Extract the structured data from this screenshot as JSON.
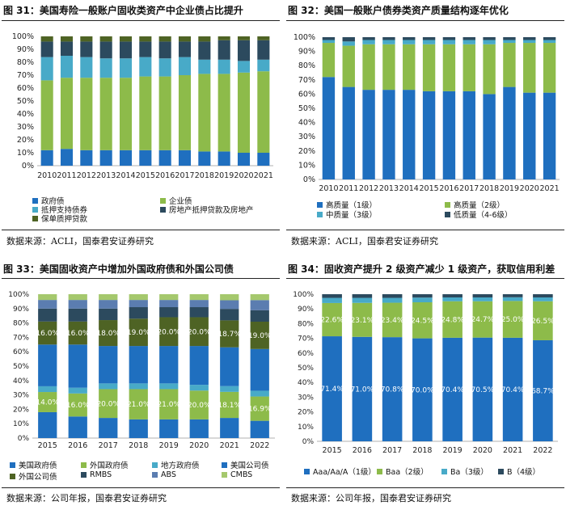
{
  "panels": [
    {
      "title": "图 31：美国寿险一般账户固收类资产中企业债占比提升",
      "source": "数据来源：ACLI，国泰君安证券研究",
      "chart_data": {
        "type": "bar",
        "stacked": true,
        "categories": [
          "2010",
          "2011",
          "2012",
          "2013",
          "2014",
          "2015",
          "2016",
          "2017",
          "2018",
          "2019",
          "2020",
          "2021"
        ],
        "ylim": [
          0,
          100
        ],
        "yticks": [
          "0%",
          "10%",
          "20%",
          "30%",
          "40%",
          "50%",
          "60%",
          "70%",
          "80%",
          "90%",
          "100%"
        ],
        "series": [
          {
            "name": "政府债",
            "color": "#1f6fbf",
            "values": [
              12,
              13,
              12,
              12,
              12,
              12,
              12,
              12,
              11,
              11,
              10,
              10
            ]
          },
          {
            "name": "企业债",
            "color": "#8dbb4a",
            "values": [
              54,
              55,
              56,
              56,
              56,
              57,
              57,
              58,
              60,
              60,
              62,
              63
            ]
          },
          {
            "name": "抵押支持债券",
            "color": "#48aac8",
            "values": [
              18,
              17,
              16,
              15,
              15,
              15,
              14,
              14,
              11,
              11,
              9,
              9
            ]
          },
          {
            "name": "房地产抵押贷款及房地产",
            "color": "#2c4a5e",
            "values": [
              12,
              11,
              12,
              13,
              13,
              12,
              13,
              12,
              14,
              15,
              16,
              15
            ]
          },
          {
            "name": "保单质押贷款",
            "color": "#4e6324",
            "values": [
              4,
              4,
              4,
              4,
              4,
              4,
              4,
              4,
              4,
              3,
              3,
              3
            ]
          }
        ]
      }
    },
    {
      "title": "图 32：美国一般账户债券类资产质量结构逐年优化",
      "source": "数据来源：ACLI，国泰君安证券研究",
      "chart_data": {
        "type": "bar",
        "stacked": true,
        "categories": [
          "2010",
          "2011",
          "2012",
          "2013",
          "2014",
          "2015",
          "2016",
          "2017",
          "2018",
          "2019",
          "2020",
          "2021"
        ],
        "ylim": [
          0,
          100
        ],
        "yticks": [
          "0%",
          "10%",
          "20%",
          "30%",
          "40%",
          "50%",
          "60%",
          "70%",
          "80%",
          "90%",
          "100%"
        ],
        "series": [
          {
            "name": "高质量（1级）",
            "color": "#1f6fbf",
            "values": [
              72,
              65,
              63,
              63,
              63,
              62,
              62,
              62,
              60,
              65,
              61,
              61
            ]
          },
          {
            "name": "高质量（2级）",
            "color": "#8dbb4a",
            "values": [
              24,
              29,
              32,
              32,
              32,
              33,
              33,
              33,
              35,
              31,
              35,
              35
            ]
          },
          {
            "name": "中质量（3级）",
            "color": "#48aac8",
            "values": [
              2,
              3,
              3,
              3,
              3,
              3,
              3,
              3,
              3,
              2,
              2,
              2
            ]
          },
          {
            "name": "低质量（4-6级）",
            "color": "#2c4a5e",
            "values": [
              2,
              3,
              2,
              2,
              2,
              2,
              2,
              2,
              2,
              2,
              2,
              2
            ]
          }
        ]
      }
    },
    {
      "title": "图 33：美国固收资产中增加外国政府债和外国公司债",
      "source": "数据来源：公司年报，国泰君安证券研究",
      "chart_data": {
        "type": "bar",
        "stacked": true,
        "categories": [
          "2015",
          "2016",
          "2017",
          "2018",
          "2019",
          "2020",
          "2021",
          "2022"
        ],
        "ylim": [
          0,
          100
        ],
        "yticks": [
          "0%",
          "10%",
          "20%",
          "30%",
          "40%",
          "50%",
          "60%",
          "70%",
          "80%",
          "90%",
          "100%"
        ],
        "series": [
          {
            "name": "美国政府债",
            "color": "#1f6fbf",
            "values": [
              18,
              15,
              14,
              13,
              13,
              13,
              14,
              12
            ],
            "labels": [
              "",
              "",
              "",
              "",
              "",
              "",
              "",
              ""
            ]
          },
          {
            "name": "外国政府债",
            "color": "#8dbb4a",
            "values": [
              14,
              16,
              20,
              21,
              21,
              20,
              18.1,
              16.9
            ],
            "labels": [
              "14.0%",
              "16.0%",
              "20.0%",
              "21.0%",
              "21.0%",
              "20.0%",
              "18.1%",
              "16.9%"
            ]
          },
          {
            "name": "地方政府债",
            "color": "#48aac8",
            "values": [
              4,
              4,
              4,
              4,
              4,
              4,
              4,
              4
            ],
            "labels": [
              "",
              "",
              "",
              "",
              "",
              "",
              "",
              ""
            ]
          },
          {
            "name": "美国公司债",
            "color": "#1f6fbf",
            "values": [
              29,
              30,
              26,
              26,
              26,
              27,
              27,
              29
            ],
            "labels": [
              "",
              "",
              "",
              "",
              "",
              "",
              "",
              ""
            ]
          },
          {
            "name": "外国公司债",
            "color": "#4e6324",
            "values": [
              16,
              16,
              18,
              19,
              20,
              20,
              18.7,
              19
            ],
            "labels": [
              "16.0%",
              "16.0%",
              "18.0%",
              "19.0%",
              "20.0%",
              "20.0%",
              "18.7%",
              "19.0%"
            ]
          },
          {
            "name": "RMBS",
            "color": "#2c4a5e",
            "values": [
              9,
              9,
              8,
              8,
              7,
              7,
              8,
              8
            ],
            "labels": [
              "",
              "",
              "",
              "",
              "",
              "",
              "",
              ""
            ]
          },
          {
            "name": "ABS",
            "color": "#5b7db0",
            "values": [
              6,
              6,
              6,
              5,
              5,
              5,
              6,
              7
            ],
            "labels": [
              "",
              "",
              "",
              "",
              "",
              "",
              "",
              ""
            ]
          },
          {
            "name": "CMBS",
            "color": "#a5c86d",
            "values": [
              4,
              4,
              4,
              4,
              4,
              4,
              4.2,
              4.1
            ],
            "labels": [
              "",
              "",
              "",
              "",
              "",
              "",
              "",
              ""
            ]
          }
        ]
      }
    },
    {
      "title": "图 34：固收资产提升 2 级资产减少 1 级资产，获取信用利差",
      "source": "数据来源：公司年报，国泰君安证券研究",
      "chart_data": {
        "type": "bar",
        "stacked": true,
        "categories": [
          "2015",
          "2016",
          "2017",
          "2018",
          "2019",
          "2020",
          "2021",
          "2022"
        ],
        "ylim": [
          0,
          100
        ],
        "yticks": [
          "0%",
          "10%",
          "20%",
          "30%",
          "40%",
          "50%",
          "60%",
          "70%",
          "80%",
          "90%",
          "100%"
        ],
        "series": [
          {
            "name": "Aaa/Aa/A（1级）",
            "color": "#1f6fbf",
            "values": [
              71.4,
              71.0,
              70.8,
              70.0,
              70.4,
              70.5,
              70.4,
              68.7
            ],
            "labels": [
              "71.4%",
              "71.0%",
              "70.8%",
              "70.0%",
              "70.4%",
              "70.5%",
              "70.4%",
              "68.7%"
            ]
          },
          {
            "name": "Baa（2级）",
            "color": "#8dbb4a",
            "values": [
              22.6,
              23.1,
              23.4,
              24.5,
              24.8,
              24.7,
              25.0,
              26.5
            ],
            "labels": [
              "22.6%",
              "23.1%",
              "23.4%",
              "24.5%",
              "24.8%",
              "24.7%",
              "25.0%",
              "26.5%"
            ]
          },
          {
            "name": "Ba（3级）",
            "color": "#48aac8",
            "values": [
              3.5,
              3.4,
              3.3,
              3.2,
              2.6,
              2.6,
              2.5,
              2.6
            ],
            "labels": [
              "",
              "",
              "",
              "",
              "",
              "",
              "",
              ""
            ]
          },
          {
            "name": "B（4级）",
            "color": "#2c4a5e",
            "values": [
              2.5,
              2.5,
              2.5,
              2.3,
              2.2,
              2.2,
              2.1,
              2.2
            ],
            "labels": [
              "",
              "",
              "",
              "",
              "",
              "",
              "",
              ""
            ]
          }
        ]
      }
    }
  ]
}
